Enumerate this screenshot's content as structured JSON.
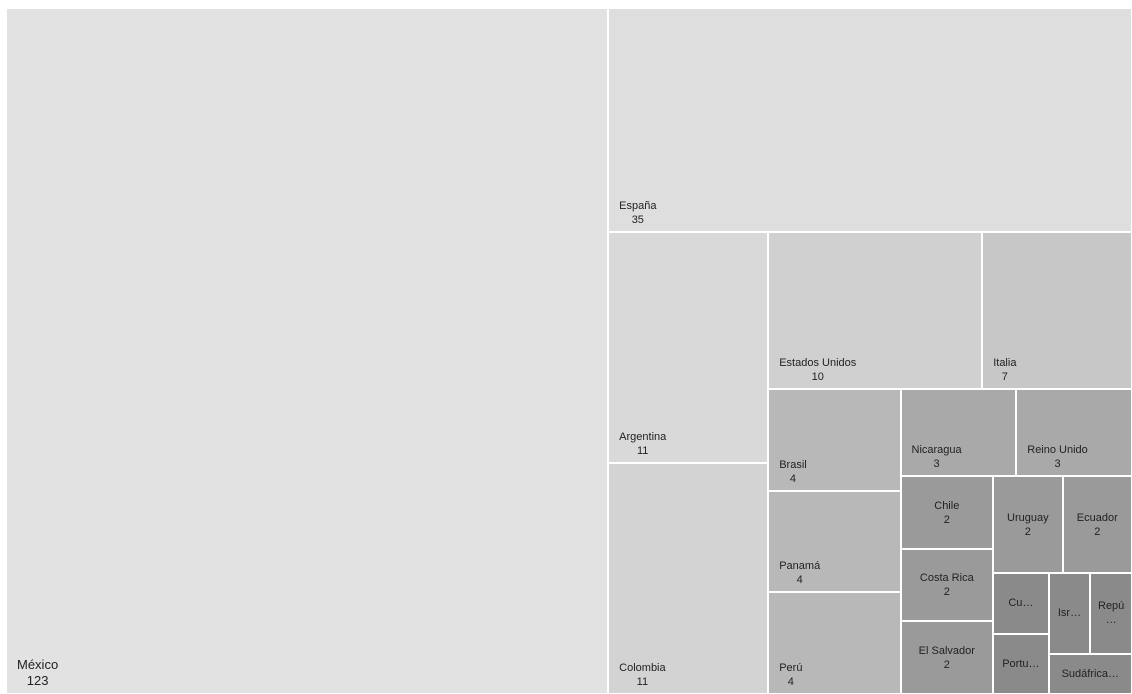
{
  "chart_data": {
    "type": "treemap",
    "categories": [
      "México",
      "España",
      "Argentina",
      "Colombia",
      "Estados Unidos",
      "Italia",
      "Brasil",
      "Panamá",
      "Perú",
      "Nicaragua",
      "Reino Unido",
      "Chile",
      "Costa Rica",
      "El Salvador",
      "Uruguay",
      "Ecuador",
      "Cu…",
      "Portu…",
      "Isr…",
      "Repú…",
      "Sudáfrica…"
    ],
    "values": [
      123,
      35,
      11,
      11,
      10,
      7,
      4,
      4,
      4,
      3,
      3,
      2,
      2,
      2,
      2,
      2,
      1,
      1,
      1,
      1,
      1
    ],
    "colors": [
      "#e2e2e2",
      "#dedede",
      "#d9d9d9",
      "#d3d3d3",
      "#d0d0d0",
      "#c7c7c7",
      "#b8b8b8",
      "#b8b8b8",
      "#b8b8b8",
      "#a9a9a9",
      "#a9a9a9",
      "#9a9a9a",
      "#9a9a9a",
      "#9a9a9a",
      "#9a9a9a",
      "#9a9a9a",
      "#8a8a8a",
      "#8a8a8a",
      "#8a8a8a",
      "#8a8a8a",
      "#8a8a8a"
    ]
  }
}
